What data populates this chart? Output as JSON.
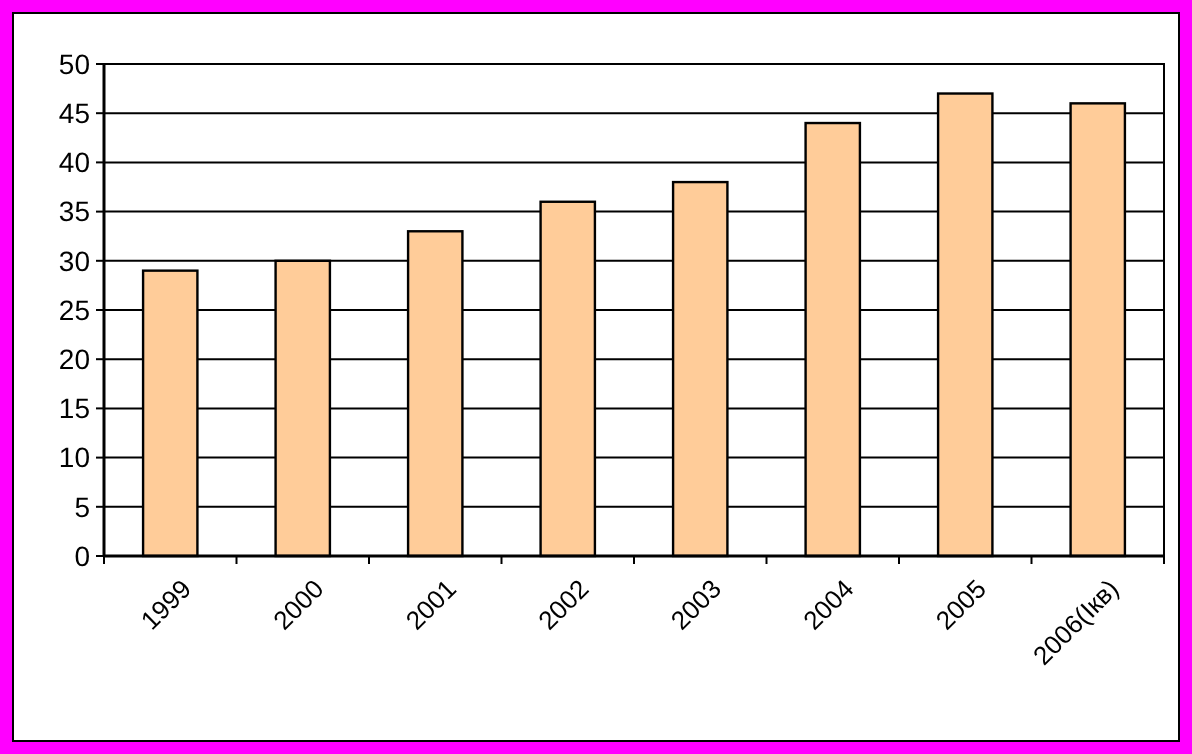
{
  "chart_data": {
    "type": "bar",
    "categories": [
      "1999",
      "2000",
      "2001",
      "2002",
      "2003",
      "2004",
      "2005",
      "2006(Iкв)"
    ],
    "values": [
      29,
      30,
      33,
      36,
      38,
      44,
      47,
      46
    ],
    "color": "#ffcc99",
    "ylim": [
      0,
      50
    ],
    "yticks": [
      0,
      5,
      10,
      15,
      20,
      25,
      30,
      35,
      40,
      45,
      50
    ],
    "grid": "y"
  }
}
